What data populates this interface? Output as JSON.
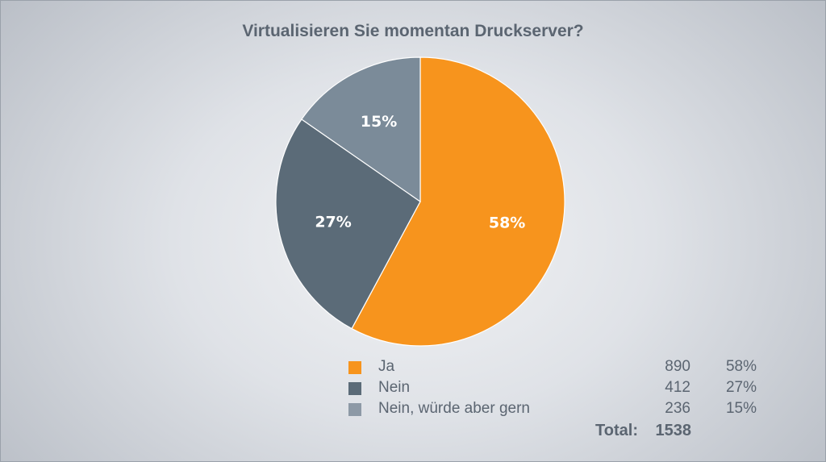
{
  "chart_data": {
    "type": "pie",
    "title": "Virtualisieren Sie momentan Druckserver?",
    "categories": [
      "Ja",
      "Nein",
      "Nein, würde aber gern"
    ],
    "values": [
      890,
      412,
      236
    ],
    "percent_labels": [
      "58%",
      "27%",
      "15%"
    ],
    "colors": [
      "#f7941d",
      "#5b6b78",
      "#7b8b99"
    ],
    "total_label": "Total:",
    "total": "1538"
  },
  "legend": [
    {
      "label": "Ja",
      "count": "890",
      "percent": "58%",
      "color": "#f7941d"
    },
    {
      "label": "Nein",
      "count": "412",
      "percent": "27%",
      "color": "#5b6b78"
    },
    {
      "label": "Nein, würde aber gern",
      "count": "236",
      "percent": "15%",
      "color": "#8d99a6"
    }
  ]
}
